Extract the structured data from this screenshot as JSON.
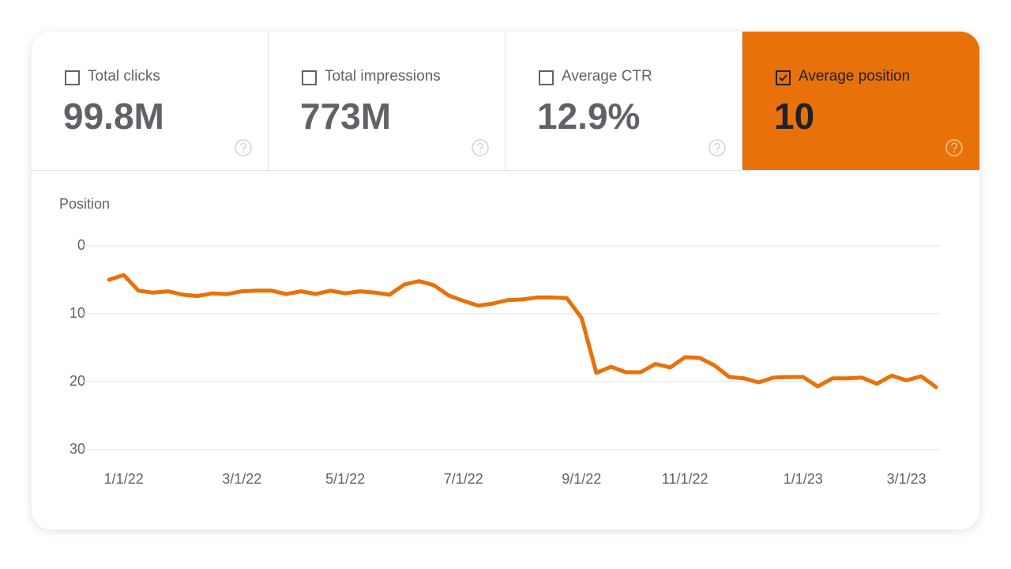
{
  "metrics": [
    {
      "label": "Total clicks",
      "value": "99.8M",
      "selected": false
    },
    {
      "label": "Total impressions",
      "value": "773M",
      "selected": false
    },
    {
      "label": "Average CTR",
      "value": "12.9%",
      "selected": false
    },
    {
      "label": "Average position",
      "value": "10",
      "selected": true
    }
  ],
  "chart_data": {
    "type": "line",
    "y_label": "Position",
    "color": "#e8710a",
    "ylim": [
      0,
      30
    ],
    "yticks": [
      0,
      10,
      20,
      30
    ],
    "y_inverted": true,
    "grid": true,
    "categories": [
      null,
      "1/1/22",
      null,
      null,
      null,
      null,
      null,
      null,
      null,
      "3/1/22",
      null,
      null,
      null,
      null,
      null,
      null,
      "5/1/22",
      null,
      null,
      null,
      null,
      null,
      null,
      null,
      "7/1/22",
      null,
      null,
      null,
      null,
      null,
      null,
      null,
      "9/1/22",
      null,
      null,
      null,
      null,
      null,
      null,
      "11/1/22",
      null,
      null,
      null,
      null,
      null,
      null,
      null,
      "1/1/23",
      null,
      null,
      null,
      null,
      null,
      null,
      "3/1/23",
      null,
      null
    ],
    "values": [
      5.0,
      4.3,
      6.6,
      6.9,
      6.7,
      7.2,
      7.4,
      7.0,
      7.1,
      6.7,
      6.6,
      6.6,
      7.1,
      6.7,
      7.1,
      6.6,
      7.0,
      6.7,
      6.9,
      7.2,
      5.7,
      5.2,
      5.8,
      7.3,
      8.1,
      8.8,
      8.5,
      8.0,
      7.9,
      7.6,
      7.6,
      7.7,
      10.6,
      18.7,
      17.8,
      18.6,
      18.6,
      17.4,
      17.9,
      16.4,
      16.5,
      17.6,
      19.3,
      19.5,
      20.1,
      19.4,
      19.3,
      19.3,
      20.7,
      19.5,
      19.5,
      19.4,
      20.3,
      19.1,
      19.8,
      19.2,
      20.8
    ]
  }
}
